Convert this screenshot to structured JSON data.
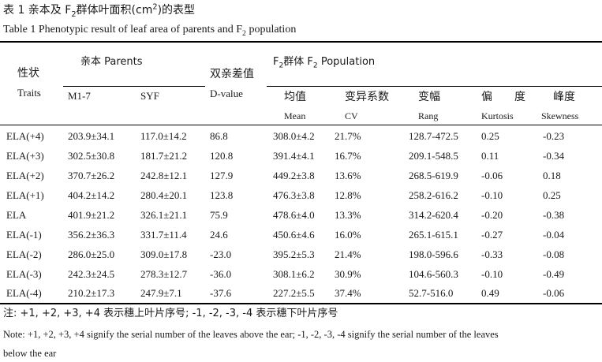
{
  "caption": {
    "cn_prefix": "表 1 亲本及 F",
    "cn_sub": "2",
    "cn_mid": "群体叶面积(cm",
    "cn_sup": "2",
    "cn_suffix": ")的表型",
    "en_prefix": "Table 1 Phenotypic result of leaf area of parents and F",
    "en_sub": "2",
    "en_suffix": " population"
  },
  "header": {
    "traits_cn": "性状",
    "traits_en": "Traits",
    "parents_label": "亲本 Parents",
    "m17": "M1-7",
    "syf": "SYF",
    "dvalue_cn": "双亲差值",
    "dvalue_en": "D-value",
    "f2_prefix": "F",
    "f2_sub": "2",
    "f2_mid": "群体 F",
    "f2_sub2": "2",
    "f2_suffix": " Population",
    "mean_cn": "均值",
    "mean_en": "Mean",
    "cv_cn": "变异系数",
    "cv_en": "CV",
    "rang_cn": "变幅",
    "rang_en": "Rang",
    "kurt_cn": "偏　　度",
    "kurt_en": "Kurtosis",
    "skew_cn": "峰度",
    "skew_en": "Skewness"
  },
  "rows": [
    [
      "ELA(+4)",
      "203.9±34.1",
      "117.0±14.2",
      "86.8",
      "308.0±4.2",
      "21.7%",
      "128.7-472.5",
      "0.25",
      "-0.23"
    ],
    [
      "ELA(+3)",
      "302.5±30.8",
      "181.7±21.2",
      "120.8",
      "391.4±4.1",
      "16.7%",
      "209.1-548.5",
      "0.11",
      "-0.34"
    ],
    [
      "ELA(+2)",
      "370.7±26.2",
      "242.8±12.1",
      "127.9",
      "449.2±3.8",
      "13.6%",
      "268.5-619.9",
      "-0.06",
      "0.18"
    ],
    [
      "ELA(+1)",
      "404.2±14.2",
      "280.4±20.1",
      "123.8",
      "476.3±3.8",
      "12.8%",
      "258.2-616.2",
      "-0.10",
      "0.25"
    ],
    [
      "ELA",
      "401.9±21.2",
      "326.1±21.1",
      "75.9",
      "478.6±4.0",
      "13.3%",
      "314.2-620.4",
      "-0.20",
      "-0.38"
    ],
    [
      "ELA(-1)",
      "356.2±36.3",
      "331.7±11.4",
      "24.6",
      "450.6±4.6",
      "16.0%",
      "265.1-615.1",
      "-0.27",
      "-0.04"
    ],
    [
      "ELA(-2)",
      "286.0±25.0",
      "309.0±17.8",
      "-23.0",
      "395.2±5.3",
      "21.4%",
      "198.0-596.6",
      "-0.33",
      "-0.08"
    ],
    [
      "ELA(-3)",
      "242.3±24.5",
      "278.3±12.7",
      "-36.0",
      "308.1±6.2",
      "30.9%",
      "104.6-560.3",
      "-0.10",
      "-0.49"
    ],
    [
      "ELA(-4)",
      "210.2±17.3",
      "247.9±7.1",
      "-37.6",
      "227.2±5.5",
      "37.4%",
      "52.7-516.0",
      "0.49",
      "-0.06"
    ]
  ],
  "notes": {
    "cn": "注: +1, +2, +3, +4 表示穗上叶片序号; -1, -2, -3, -4 表示穗下叶片序号",
    "en_line1": "Note: +1, +2, +3, +4 signify the serial number of the leaves above the ear; -1, -2, -3, -4 signify the serial number of the leaves",
    "en_line2": "below the ear"
  }
}
